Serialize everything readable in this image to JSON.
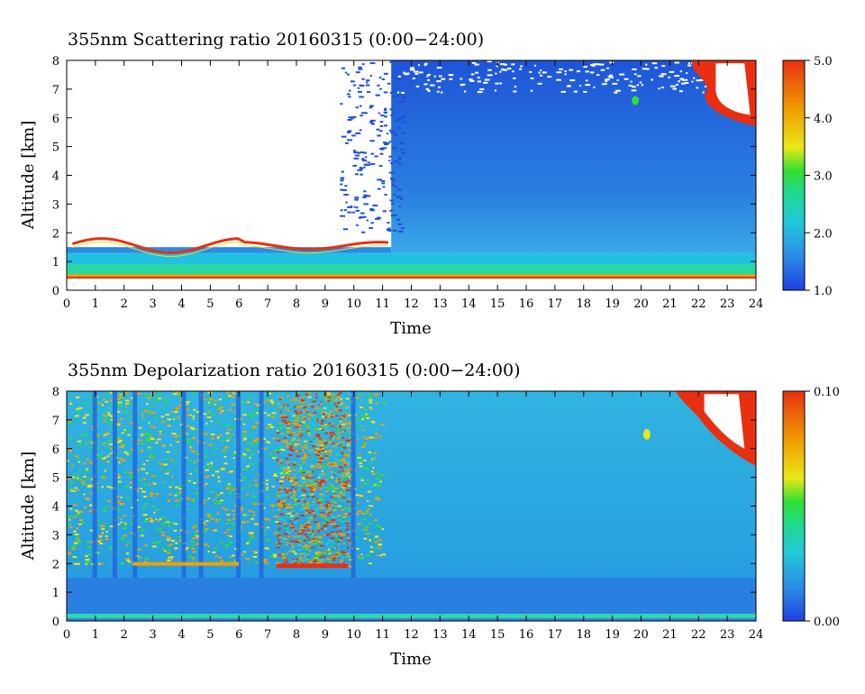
{
  "chart_data": [
    {
      "type": "heatmap",
      "title": "355nm Scattering ratio  20160315 (0:00−24:00)",
      "xlabel": "Time",
      "ylabel": "Altitude [km]",
      "xlim": [
        0,
        24
      ],
      "ylim": [
        0,
        8
      ],
      "x_ticks": [
        "0",
        "1",
        "2",
        "3",
        "4",
        "5",
        "6",
        "7",
        "8",
        "9",
        "10",
        "11",
        "12",
        "13",
        "14",
        "15",
        "16",
        "17",
        "18",
        "19",
        "20",
        "21",
        "22",
        "23",
        "24"
      ],
      "y_ticks": [
        "0",
        "1",
        "2",
        "3",
        "4",
        "5",
        "6",
        "7",
        "8"
      ],
      "colorbar": {
        "range": [
          1.0,
          5.0
        ],
        "tick_labels": [
          "5.0",
          "4.0",
          "3.0",
          "2.0",
          "1.0"
        ],
        "colors": [
          "#1f3fe0",
          "#2a8ae8",
          "#22c8d8",
          "#20d890",
          "#30e030",
          "#e8e818",
          "#f0a000",
          "#e83010"
        ]
      },
      "features": {
        "clear_region_until_hour": 11.3,
        "low_cloud_top_km": 1.8,
        "surface_layer_km": 0.45,
        "high_cloud_after_hour": 20.5
      }
    },
    {
      "type": "heatmap",
      "title": "355nm Depolarization ratio  20160315 (0:00−24:00)",
      "xlabel": "Time",
      "ylabel": "Altitude [km]",
      "xlim": [
        0,
        24
      ],
      "ylim": [
        0,
        8
      ],
      "x_ticks": [
        "0",
        "1",
        "2",
        "3",
        "4",
        "5",
        "6",
        "7",
        "8",
        "9",
        "10",
        "11",
        "12",
        "13",
        "14",
        "15",
        "16",
        "17",
        "18",
        "19",
        "20",
        "21",
        "22",
        "23",
        "24"
      ],
      "y_ticks": [
        "0",
        "1",
        "2",
        "3",
        "4",
        "5",
        "6",
        "7",
        "8"
      ],
      "colorbar": {
        "range": [
          0.0,
          0.1
        ],
        "tick_labels": [
          "0.10",
          "0.00"
        ],
        "colors": [
          "#1f3fe0",
          "#2a8ae8",
          "#22c8d8",
          "#20d890",
          "#30e030",
          "#e8e818",
          "#f0a000",
          "#e83010"
        ]
      },
      "features": {
        "noisy_region_hours": [
          0,
          11
        ],
        "high_depol_band_hours": [
          7.3,
          9.8
        ],
        "high_cloud_after_hour": 21
      }
    }
  ]
}
